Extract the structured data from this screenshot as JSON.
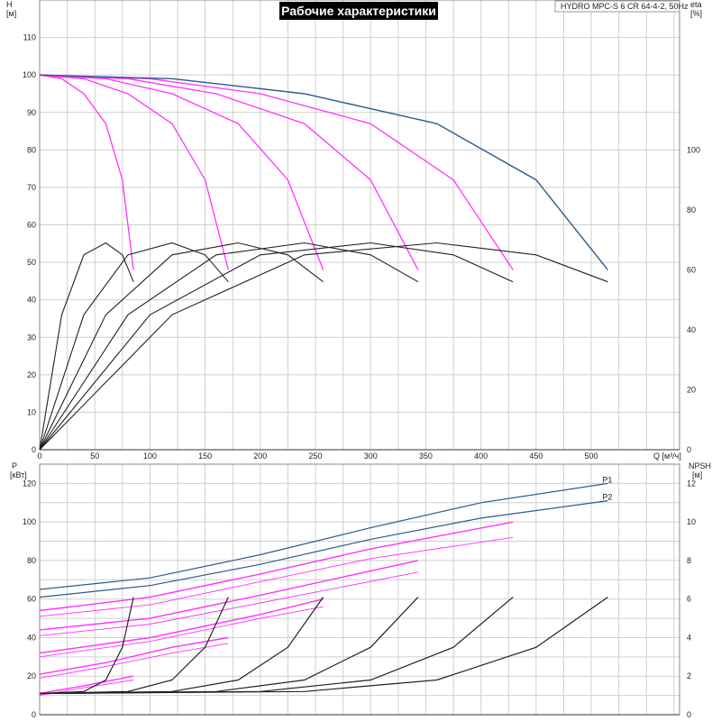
{
  "title": "Рабочие характеристики",
  "model": "HYDRO MPC-S 6 CR 64-4-2, 50Hz",
  "chart_data": [
    {
      "type": "line",
      "xlabel": "Q [м³/ч]",
      "ylabel": "H [м]",
      "ylabel2": "eta [%]",
      "xlim": [
        0,
        580
      ],
      "ylim": [
        0,
        120
      ],
      "ylim2": [
        0,
        150
      ],
      "xticks": [
        0,
        50,
        100,
        150,
        200,
        250,
        300,
        350,
        400,
        450,
        500
      ],
      "yticks": [
        0,
        10,
        20,
        30,
        40,
        50,
        60,
        70,
        80,
        90,
        100,
        110
      ],
      "yticks2": [
        0,
        20,
        40,
        60,
        80,
        100
      ],
      "colors": {
        "head_max": "#2e5b8a",
        "head_reduced": "#ff33ff",
        "efficiency": "#222222"
      },
      "head_series": [
        {
          "pumps": 1,
          "points": [
            [
              0,
              100
            ],
            [
              20,
              99
            ],
            [
              40,
              95
            ],
            [
              60,
              87
            ],
            [
              75,
              72
            ],
            [
              85,
              48
            ]
          ]
        },
        {
          "pumps": 2,
          "points": [
            [
              0,
              100
            ],
            [
              40,
              99
            ],
            [
              80,
              95
            ],
            [
              120,
              87
            ],
            [
              150,
              72
            ],
            [
              171,
              48
            ]
          ]
        },
        {
          "pumps": 3,
          "points": [
            [
              0,
              100
            ],
            [
              60,
              99
            ],
            [
              120,
              95
            ],
            [
              180,
              87
            ],
            [
              225,
              72
            ],
            [
              257,
              48
            ]
          ]
        },
        {
          "pumps": 4,
          "points": [
            [
              0,
              100
            ],
            [
              80,
              99
            ],
            [
              160,
              95
            ],
            [
              240,
              87
            ],
            [
              300,
              72
            ],
            [
              343,
              48
            ]
          ]
        },
        {
          "pumps": 5,
          "points": [
            [
              0,
              100
            ],
            [
              100,
              99
            ],
            [
              200,
              95
            ],
            [
              300,
              87
            ],
            [
              375,
              72
            ],
            [
              429,
              48
            ]
          ]
        },
        {
          "pumps": 6,
          "points": [
            [
              0,
              100
            ],
            [
              120,
              99
            ],
            [
              240,
              95
            ],
            [
              360,
              87
            ],
            [
              450,
              72
            ],
            [
              515,
              48
            ]
          ]
        }
      ],
      "efficiency_series": [
        {
          "pumps": 1,
          "points": [
            [
              0,
              0
            ],
            [
              20,
              45
            ],
            [
              40,
              65
            ],
            [
              60,
              69
            ],
            [
              75,
              65
            ],
            [
              85,
              56
            ]
          ]
        },
        {
          "pumps": 2,
          "points": [
            [
              0,
              0
            ],
            [
              40,
              45
            ],
            [
              80,
              65
            ],
            [
              120,
              69
            ],
            [
              150,
              65
            ],
            [
              171,
              56
            ]
          ]
        },
        {
          "pumps": 3,
          "points": [
            [
              0,
              0
            ],
            [
              60,
              45
            ],
            [
              120,
              65
            ],
            [
              180,
              69
            ],
            [
              225,
              65
            ],
            [
              257,
              56
            ]
          ]
        },
        {
          "pumps": 4,
          "points": [
            [
              0,
              0
            ],
            [
              80,
              45
            ],
            [
              160,
              65
            ],
            [
              240,
              69
            ],
            [
              300,
              65
            ],
            [
              343,
              56
            ]
          ]
        },
        {
          "pumps": 5,
          "points": [
            [
              0,
              0
            ],
            [
              100,
              45
            ],
            [
              200,
              65
            ],
            [
              300,
              69
            ],
            [
              375,
              65
            ],
            [
              429,
              56
            ]
          ]
        },
        {
          "pumps": 6,
          "points": [
            [
              0,
              0
            ],
            [
              120,
              45
            ],
            [
              240,
              65
            ],
            [
              360,
              69
            ],
            [
              450,
              65
            ],
            [
              515,
              56
            ]
          ]
        }
      ]
    },
    {
      "type": "line",
      "xlabel": "",
      "ylabel": "P [кВт]",
      "ylabel2": "NPSH [м]",
      "xlim": [
        0,
        580
      ],
      "ylim": [
        0,
        130
      ],
      "ylim2": [
        0,
        13
      ],
      "yticks": [
        0,
        20,
        40,
        60,
        80,
        100,
        120
      ],
      "yticks2": [
        0,
        2,
        4,
        6,
        8,
        10,
        12
      ],
      "colors": {
        "power_max": "#2e5b8a",
        "power_reduced": "#ff33ff",
        "npsh": "#222222",
        "label": "#2e5b8a"
      },
      "power_series": [
        {
          "name": "P1",
          "points": [
            [
              0,
              65
            ],
            [
              100,
              71
            ],
            [
              200,
              83
            ],
            [
              300,
              97
            ],
            [
              400,
              110
            ],
            [
              515,
              120
            ]
          ]
        },
        {
          "name": "P2",
          "points": [
            [
              0,
              61
            ],
            [
              100,
              67
            ],
            [
              200,
              78
            ],
            [
              300,
              91
            ],
            [
              400,
              102
            ],
            [
              515,
              111
            ]
          ]
        },
        {
          "pumps": 5,
          "points": [
            [
              0,
              54
            ],
            [
              100,
              61
            ],
            [
              200,
              73
            ],
            [
              300,
              86
            ],
            [
              429,
              100
            ]
          ]
        },
        {
          "pumps": 5,
          "points": [
            [
              0,
              51
            ],
            [
              100,
              57
            ],
            [
              200,
              69
            ],
            [
              300,
              81
            ],
            [
              429,
              92
            ]
          ]
        },
        {
          "pumps": 4,
          "points": [
            [
              0,
              44
            ],
            [
              100,
              50
            ],
            [
              200,
              62
            ],
            [
              343,
              80
            ]
          ]
        },
        {
          "pumps": 4,
          "points": [
            [
              0,
              41
            ],
            [
              100,
              47
            ],
            [
              200,
              58
            ],
            [
              343,
              74
            ]
          ]
        },
        {
          "pumps": 3,
          "points": [
            [
              0,
              32
            ],
            [
              100,
              40
            ],
            [
              200,
              52
            ],
            [
              257,
              60
            ]
          ]
        },
        {
          "pumps": 3,
          "points": [
            [
              0,
              30
            ],
            [
              100,
              38
            ],
            [
              200,
              50
            ],
            [
              257,
              56
            ]
          ]
        },
        {
          "pumps": 2,
          "points": [
            [
              0,
              21
            ],
            [
              60,
              27
            ],
            [
              120,
              35
            ],
            [
              171,
              40
            ]
          ]
        },
        {
          "pumps": 2,
          "points": [
            [
              0,
              19
            ],
            [
              60,
              25
            ],
            [
              120,
              32
            ],
            [
              171,
              37
            ]
          ]
        },
        {
          "pumps": 1,
          "points": [
            [
              0,
              11
            ],
            [
              40,
              15
            ],
            [
              85,
              20
            ]
          ]
        },
        {
          "pumps": 1,
          "points": [
            [
              0,
              10
            ],
            [
              40,
              14
            ],
            [
              85,
              18
            ]
          ]
        }
      ],
      "npsh_series": [
        {
          "pumps": 1,
          "points": [
            [
              0,
              1.1
            ],
            [
              40,
              1.2
            ],
            [
              60,
              1.8
            ],
            [
              75,
              3.5
            ],
            [
              85,
              6.1
            ]
          ]
        },
        {
          "pumps": 2,
          "points": [
            [
              0,
              1.1
            ],
            [
              80,
              1.2
            ],
            [
              120,
              1.8
            ],
            [
              150,
              3.5
            ],
            [
              171,
              6.1
            ]
          ]
        },
        {
          "pumps": 3,
          "points": [
            [
              0,
              1.1
            ],
            [
              120,
              1.2
            ],
            [
              180,
              1.8
            ],
            [
              225,
              3.5
            ],
            [
              257,
              6.1
            ]
          ]
        },
        {
          "pumps": 4,
          "points": [
            [
              0,
              1.1
            ],
            [
              160,
              1.2
            ],
            [
              240,
              1.8
            ],
            [
              300,
              3.5
            ],
            [
              343,
              6.1
            ]
          ]
        },
        {
          "pumps": 5,
          "points": [
            [
              0,
              1.1
            ],
            [
              200,
              1.2
            ],
            [
              300,
              1.8
            ],
            [
              375,
              3.5
            ],
            [
              429,
              6.1
            ]
          ]
        },
        {
          "pumps": 6,
          "points": [
            [
              0,
              1.1
            ],
            [
              240,
              1.2
            ],
            [
              360,
              1.8
            ],
            [
              450,
              3.5
            ],
            [
              515,
              6.1
            ]
          ]
        }
      ]
    }
  ]
}
